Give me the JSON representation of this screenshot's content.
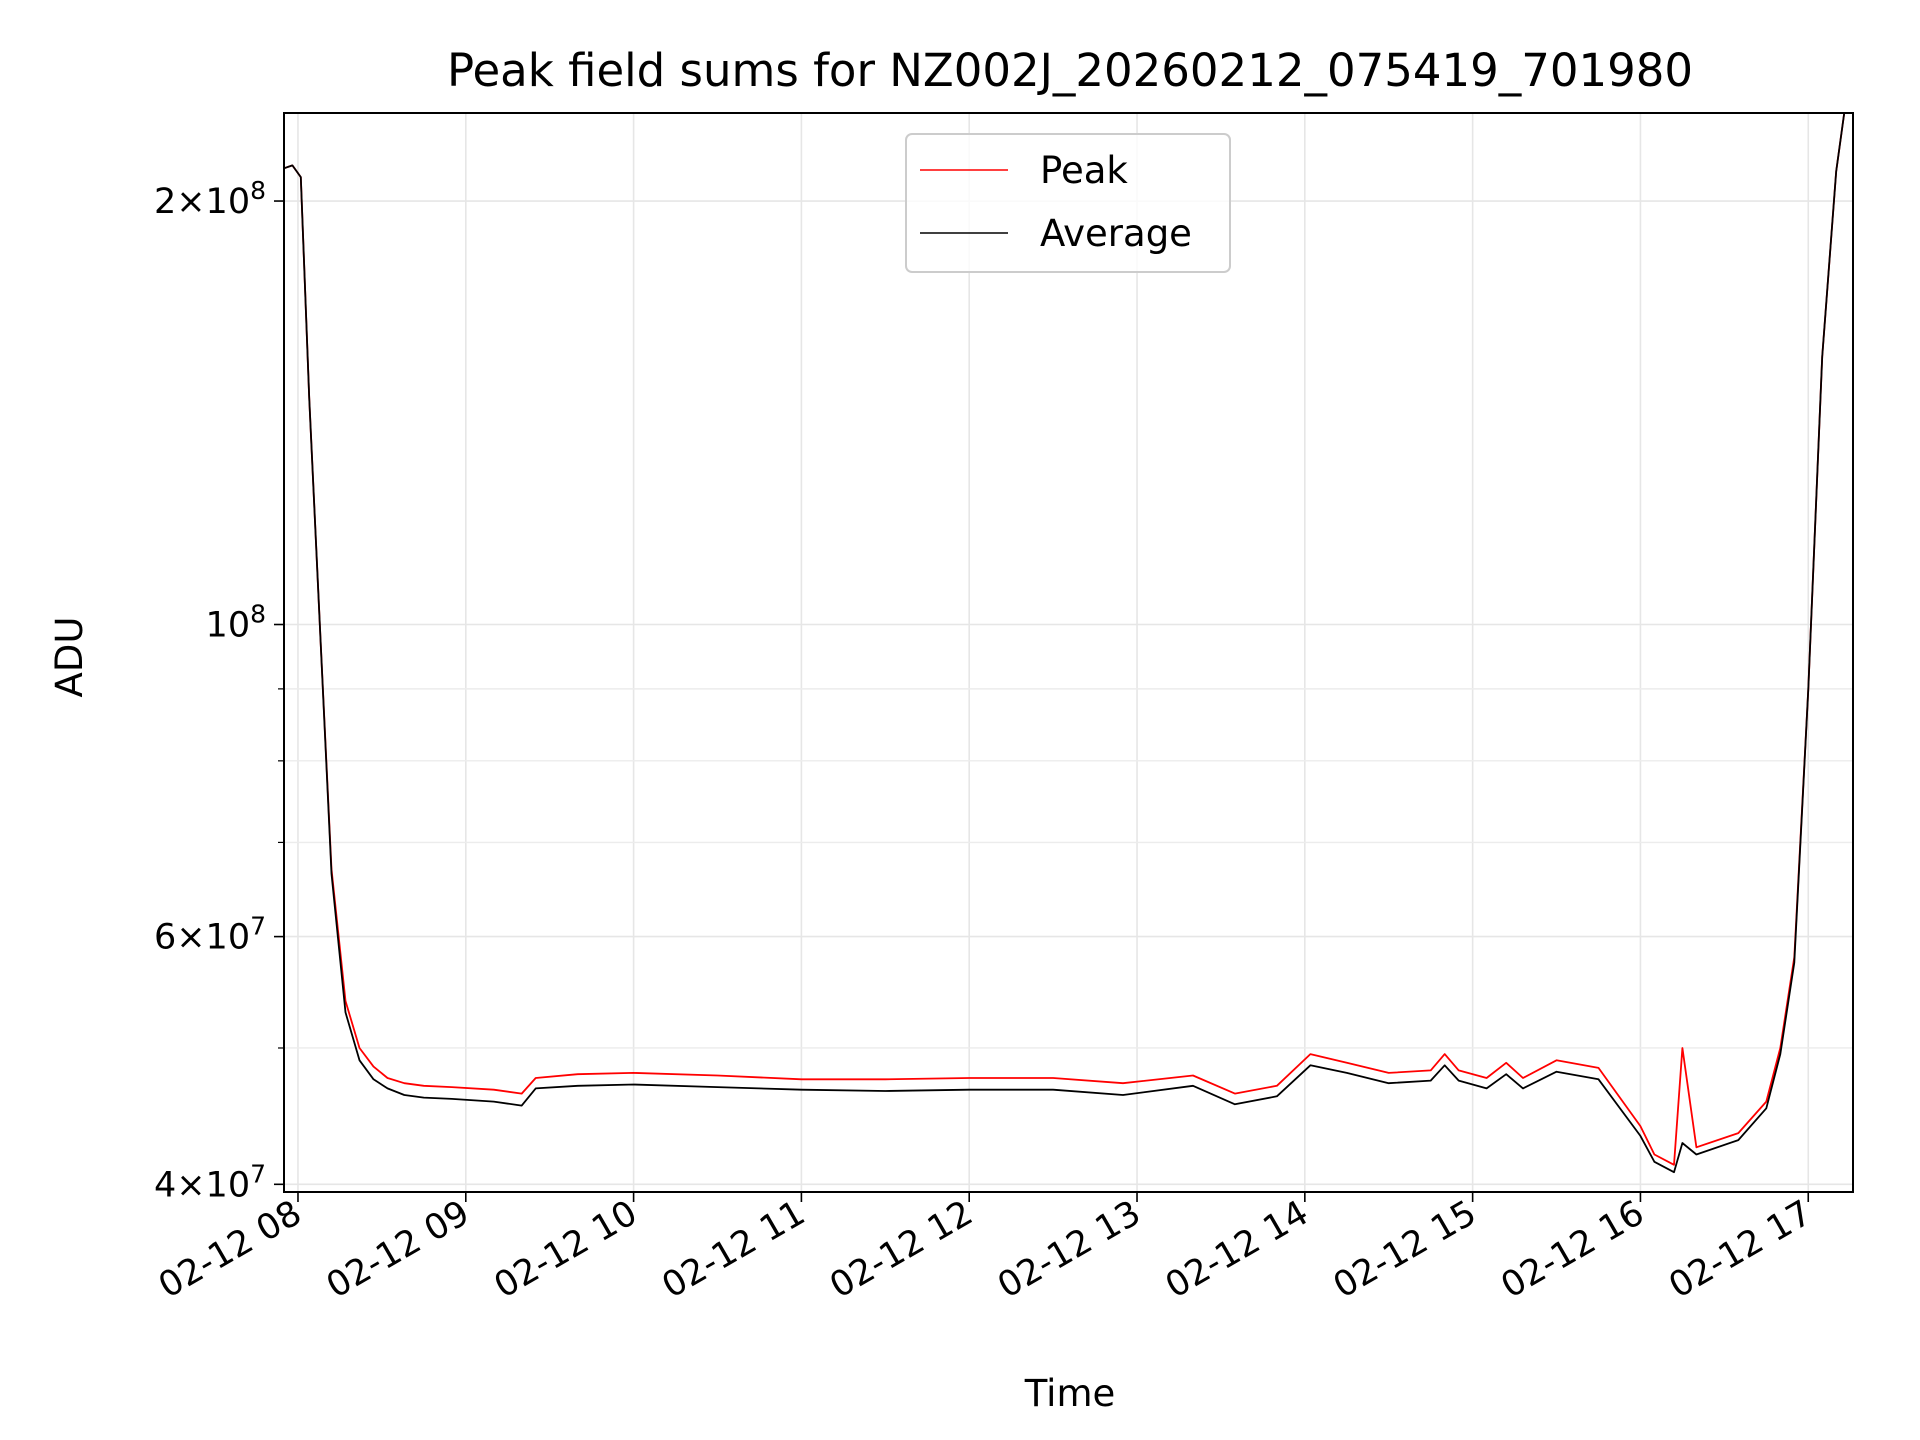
{
  "chart_data": {
    "type": "line",
    "title": "Peak field sums for NZ002J_20260212_075419_701980",
    "xlabel": "Time",
    "ylabel": "ADU",
    "yscale": "log",
    "ylim": [
      39500000,
      231000000
    ],
    "xlim": [
      "2026-02-12 07:55",
      "2026-02-12 17:16"
    ],
    "grid": true,
    "legend": {
      "position": "top-center",
      "entries": [
        "Peak",
        "Average"
      ]
    },
    "x_ticks": [
      {
        "t": "2026-02-12 08:00",
        "label": "02-12 08"
      },
      {
        "t": "2026-02-12 09:00",
        "label": "02-12 09"
      },
      {
        "t": "2026-02-12 10:00",
        "label": "02-12 10"
      },
      {
        "t": "2026-02-12 11:00",
        "label": "02-12 11"
      },
      {
        "t": "2026-02-12 12:00",
        "label": "02-12 12"
      },
      {
        "t": "2026-02-12 13:00",
        "label": "02-12 13"
      },
      {
        "t": "2026-02-12 14:00",
        "label": "02-12 14"
      },
      {
        "t": "2026-02-12 15:00",
        "label": "02-12 15"
      },
      {
        "t": "2026-02-12 16:00",
        "label": "02-12 16"
      },
      {
        "t": "2026-02-12 17:00",
        "label": "02-12 17"
      }
    ],
    "y_major_ticks": [
      {
        "value": 40000000,
        "mant": "4",
        "exp": "7"
      },
      {
        "value": 60000000,
        "mant": "6",
        "exp": "7"
      },
      {
        "value": 100000000,
        "mant": "",
        "exp": "8"
      },
      {
        "value": 200000000,
        "mant": "2",
        "exp": "8"
      }
    ],
    "y_minor_ticks": [
      50000000,
      70000000,
      80000000,
      90000000
    ],
    "series": [
      {
        "name": "Peak",
        "color": "#ff0000",
        "x": [
          "2026-02-12 07:55",
          "2026-02-12 07:58",
          "2026-02-12 08:01",
          "2026-02-12 08:04",
          "2026-02-12 08:08",
          "2026-02-12 08:12",
          "2026-02-12 08:17",
          "2026-02-12 08:22",
          "2026-02-12 08:27",
          "2026-02-12 08:32",
          "2026-02-12 08:38",
          "2026-02-12 08:45",
          "2026-02-12 08:55",
          "2026-02-12 09:10",
          "2026-02-12 09:20",
          "2026-02-12 09:25",
          "2026-02-12 09:40",
          "2026-02-12 10:00",
          "2026-02-12 10:30",
          "2026-02-12 11:00",
          "2026-02-12 11:30",
          "2026-02-12 12:00",
          "2026-02-12 12:30",
          "2026-02-12 12:55",
          "2026-02-12 13:20",
          "2026-02-12 13:35",
          "2026-02-12 13:50",
          "2026-02-12 14:02",
          "2026-02-12 14:15",
          "2026-02-12 14:30",
          "2026-02-12 14:45",
          "2026-02-12 14:50",
          "2026-02-12 14:55",
          "2026-02-12 15:05",
          "2026-02-12 15:12",
          "2026-02-12 15:18",
          "2026-02-12 15:30",
          "2026-02-12 15:45",
          "2026-02-12 16:00",
          "2026-02-12 16:05",
          "2026-02-12 16:12",
          "2026-02-12 16:15",
          "2026-02-12 16:20",
          "2026-02-12 16:35",
          "2026-02-12 16:45",
          "2026-02-12 16:50",
          "2026-02-12 16:55",
          "2026-02-12 17:00",
          "2026-02-12 17:05",
          "2026-02-12 17:10",
          "2026-02-12 17:13"
        ],
        "y": [
          211000000,
          212000000,
          208000000,
          145000000,
          98000000,
          67000000,
          54000000,
          50000000,
          48500000,
          47600000,
          47200000,
          47000000,
          46900000,
          46700000,
          46400000,
          47600000,
          47900000,
          48000000,
          47800000,
          47500000,
          47500000,
          47600000,
          47600000,
          47200000,
          47800000,
          46400000,
          47000000,
          49500000,
          48800000,
          48000000,
          48200000,
          49500000,
          48200000,
          47600000,
          48800000,
          47600000,
          49000000,
          48400000,
          44000000,
          42000000,
          41300000,
          50000000,
          42500000,
          43500000,
          45800000,
          50000000,
          58000000,
          90000000,
          155000000,
          210000000,
          232000000
        ]
      },
      {
        "name": "Average",
        "color": "#000000",
        "x": [
          "2026-02-12 07:55",
          "2026-02-12 07:58",
          "2026-02-12 08:01",
          "2026-02-12 08:04",
          "2026-02-12 08:08",
          "2026-02-12 08:12",
          "2026-02-12 08:17",
          "2026-02-12 08:22",
          "2026-02-12 08:27",
          "2026-02-12 08:32",
          "2026-02-12 08:38",
          "2026-02-12 08:45",
          "2026-02-12 08:55",
          "2026-02-12 09:10",
          "2026-02-12 09:20",
          "2026-02-12 09:25",
          "2026-02-12 09:40",
          "2026-02-12 10:00",
          "2026-02-12 10:30",
          "2026-02-12 11:00",
          "2026-02-12 11:30",
          "2026-02-12 12:00",
          "2026-02-12 12:30",
          "2026-02-12 12:55",
          "2026-02-12 13:20",
          "2026-02-12 13:35",
          "2026-02-12 13:50",
          "2026-02-12 14:02",
          "2026-02-12 14:15",
          "2026-02-12 14:30",
          "2026-02-12 14:45",
          "2026-02-12 14:50",
          "2026-02-12 14:55",
          "2026-02-12 15:05",
          "2026-02-12 15:12",
          "2026-02-12 15:18",
          "2026-02-12 15:30",
          "2026-02-12 15:45",
          "2026-02-12 16:00",
          "2026-02-12 16:05",
          "2026-02-12 16:12",
          "2026-02-12 16:15",
          "2026-02-12 16:20",
          "2026-02-12 16:35",
          "2026-02-12 16:45",
          "2026-02-12 16:50",
          "2026-02-12 16:55",
          "2026-02-12 17:00",
          "2026-02-12 17:05",
          "2026-02-12 17:10",
          "2026-02-12 17:13"
        ],
        "y": [
          211000000,
          212000000,
          208000000,
          145000000,
          98000000,
          66500000,
          53000000,
          49000000,
          47500000,
          46800000,
          46300000,
          46100000,
          46000000,
          45800000,
          45500000,
          46800000,
          47000000,
          47100000,
          46900000,
          46700000,
          46600000,
          46700000,
          46700000,
          46300000,
          47000000,
          45600000,
          46200000,
          48600000,
          48000000,
          47200000,
          47400000,
          48600000,
          47400000,
          46800000,
          47900000,
          46800000,
          48100000,
          47500000,
          43300000,
          41500000,
          40800000,
          42800000,
          42000000,
          43000000,
          45300000,
          49500000,
          57500000,
          90000000,
          155000000,
          210000000,
          232000000
        ]
      }
    ]
  }
}
